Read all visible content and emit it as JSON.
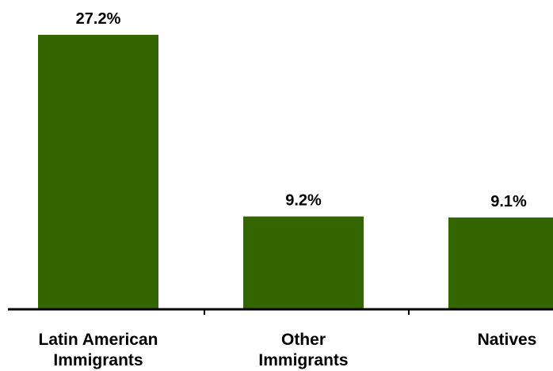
{
  "chart_data": {
    "type": "bar",
    "categories": [
      [
        "Latin American",
        "Immigrants"
      ],
      [
        "Other",
        "Immigrants"
      ],
      [
        "Natives"
      ]
    ],
    "values": [
      27.2,
      9.2,
      9.1
    ],
    "value_labels": [
      "27.2%",
      "9.2%",
      "9.1%"
    ],
    "title": "",
    "xlabel": "",
    "ylabel": "",
    "ylim": [
      0,
      30
    ],
    "grid": false,
    "legend": "none",
    "bar_color": "#336600",
    "axis_color": "#000000"
  }
}
